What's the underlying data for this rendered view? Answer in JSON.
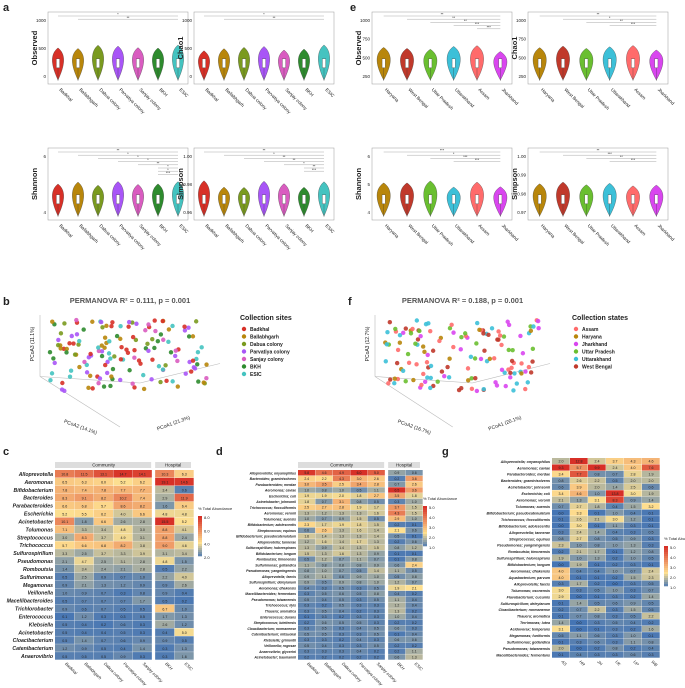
{
  "panels": {
    "a": "a",
    "b": "b",
    "c": "c",
    "d": "d",
    "e": "e",
    "f": "f",
    "g": "g"
  },
  "colors": {
    "sites": {
      "Badkhal": "#d73027",
      "Ballabhgarh": "#b8860b",
      "Dabua colony": "#7a9a1f",
      "Parvatiya colony": "#a855f7",
      "Sanjay colony": "#d95cc0",
      "BKH": "#2e8b2e",
      "ESIC": "#44c3c0"
    },
    "states": {
      "Assam": "#ff6b6b",
      "Haryana": "#b8860b",
      "Jharkhand": "#d946ef",
      "Uttar Pradesh": "#6abf30",
      "Uttarakhand": "#3cc0d8",
      "West Bengal": "#c0392b"
    },
    "heatmap_low": "#4575b4",
    "heatmap_mid": "#fee090",
    "heatmap_high": "#d73027"
  },
  "chart_data": [
    {
      "id": "a",
      "type": "violin",
      "facets": [
        "Observed",
        "Chao1",
        "Shannon",
        "Simpson"
      ],
      "categories": [
        "Badkhal",
        "Ballabhgarh",
        "Dabua colony",
        "Parvatiya colony",
        "Sanjay colony",
        "BKH",
        "ESIC"
      ],
      "yticks": {
        "Observed": [
          "1000",
          "500",
          "0"
        ],
        "Chao1": [
          "1000",
          "500",
          "0"
        ],
        "Shannon": [
          "6",
          "4"
        ],
        "Simpson": [
          "1.00",
          "0.98",
          "0.96"
        ]
      },
      "annotations": {
        "Observed": [
          "*",
          "**"
        ],
        "Chao1": [
          "*",
          "**"
        ],
        "Shannon": [
          "**",
          "*",
          "*",
          "*",
          "**",
          "*",
          "*",
          "***"
        ],
        "Simpson": [
          "**",
          "*",
          "**",
          "**",
          "*",
          "**",
          "***"
        ]
      }
    },
    {
      "id": "b",
      "type": "scatter3d",
      "title": "PERMANOVA R² = 0.111, p = 0.001",
      "axes": [
        "PCoA1 (21.3%)",
        "PCoA2 (14.1%)",
        "PCoA3 (11.1%)"
      ],
      "zticks": [
        "0.4",
        "0.2",
        "0",
        "-0.2"
      ],
      "xticks": [
        "-0.2",
        "0",
        "0.2",
        "0.4",
        "0.6"
      ],
      "yticks": [
        "0.6",
        "0.4",
        "0.2",
        "0",
        "-0.2",
        "-0.4"
      ],
      "legend_title": "Collection sites",
      "legend": [
        "Badkhal",
        "Ballabhgarh",
        "Dabua colony",
        "Parvatiya colony",
        "Sanjay colony",
        "BKH",
        "ESIC"
      ]
    },
    {
      "id": "c",
      "type": "heatmap",
      "groups": [
        "Community",
        "Hospital"
      ],
      "columns": [
        "Badkhal",
        "Ballabhgarh",
        "Dabua colony",
        "Parvatiya colony",
        "Sanjay colony",
        "BKH",
        "ESIC"
      ],
      "legend_title": "% Total Abundance",
      "legend_ticks": [
        "8.0",
        "6.0",
        "4.0",
        "2.0"
      ],
      "rows": [
        "Alloprevotella",
        "Aeromonas",
        "Bifidobacterium",
        "Bacteroides",
        "Parabacteroides",
        "Escherichia",
        "Acinetobacter",
        "Tolumonas",
        "Streptococcus",
        "Trichococcus",
        "Sulfurospirillum",
        "Pseudomonas",
        "Romboutsia",
        "Sulfurimonas",
        "Megamonas",
        "Veillonella",
        "Macellibacteroides",
        "Trichlorobacter",
        "Enterococcus",
        "Klebsiella",
        "Acinetobacter",
        "Cloacibacterium",
        "Catenibacterium",
        "Anaerovibrio"
      ],
      "values": [
        [
          10.8,
          11.5,
          13.1,
          14.7,
          14.1,
          10.3,
          6.3
        ],
        [
          6.5,
          6.3,
          6.0,
          5.2,
          6.2,
          19.1,
          14.6
        ],
        [
          7.8,
          7.4,
          7.8,
          7.7,
          7.7,
          3.4,
          0.6
        ],
        [
          8.3,
          9.1,
          8.2,
          10.2,
          7.4,
          2.9,
          11.9
        ],
        [
          6.6,
          6.8,
          5.7,
          8.6,
          8.2,
          1.6,
          6.4
        ],
        [
          5.2,
          5.5,
          6.2,
          4.0,
          6.6,
          4.8,
          4.8
        ],
        [
          10.1,
          1.8,
          6.6,
          2.6,
          2.8,
          15.5,
          5.2
        ],
        [
          7.1,
          3.3,
          3.4,
          4.8,
          3.0,
          8.8,
          4.1
        ],
        [
          3.0,
          8.3,
          3.7,
          4.9,
          3.1,
          8.8,
          2.4
        ],
        [
          5.7,
          6.6,
          6.8,
          8.2,
          3.8,
          9.0,
          4.6
        ],
        [
          3.3,
          2.5,
          3.7,
          3.3,
          3.9,
          3.1,
          3.4
        ],
        [
          2.1,
          4.7,
          2.5,
          3.1,
          2.8,
          4.8,
          1.5
        ],
        [
          1.4,
          3.4,
          2.4,
          2.1,
          2.8,
          0.5,
          2.2
        ],
        [
          0.5,
          2.5,
          0.9,
          0.7,
          1.0,
          2.2,
          4.0
        ],
        [
          0.9,
          2.1,
          1.3,
          1.2,
          0.9,
          0.9,
          2.6
        ],
        [
          1.0,
          0.9,
          0.7,
          0.3,
          0.8,
          0.9,
          0.4
        ],
        [
          0.5,
          0.7,
          0.7,
          0.7,
          1.7,
          0.5,
          0.2
        ],
        [
          0.9,
          0.6,
          0.7,
          0.5,
          0.5,
          6.7,
          1.0
        ],
        [
          0.1,
          1.2,
          0.3,
          0.3,
          0.5,
          1.7,
          1.3
        ],
        [
          0.5,
          0.4,
          0.2,
          0.6,
          0.3,
          2.6,
          1.2
        ],
        [
          0.5,
          0.4,
          0.4,
          0.5,
          0.3,
          0.4,
          5.0
        ],
        [
          0.5,
          1.4,
          0.7,
          0.6,
          0.9,
          0.9,
          0.5
        ],
        [
          1.2,
          0.9,
          0.5,
          0.4,
          1.4,
          0.3,
          1.3
        ],
        [
          0.5,
          0.5,
          0.5,
          0.9,
          0.3,
          0.3,
          1.6
        ]
      ]
    },
    {
      "id": "d",
      "type": "heatmap",
      "groups": [
        "Community",
        "Hospital"
      ],
      "columns": [
        "Badkhal",
        "Ballabhgarh",
        "Dabua colony",
        "Parvatiya colony",
        "Sanjay colony",
        "BKH",
        "ESIC"
      ],
      "legend_title": "% Total Abundance",
      "legend_ticks": [
        "5.0",
        "4.0",
        "3.0",
        "2.0",
        "1.0"
      ],
      "rows": [
        "Alloprevotella; onyanophilus",
        "Bacteroides; graminisolvens",
        "Parabacteroides; merdae",
        "Aeromonas; caviae",
        "Escherichia; coli",
        "Acinetobacter; johnsonii",
        "Trichococcus; flocculiformis",
        "Aeromonas; veronii",
        "Tolumonas; auensis",
        "Bifidobacterium; adolescentis",
        "Streptococcus; equinus",
        "Bifidobacterium; pseudocatenulatum",
        "Alloprevotella; tannerae",
        "Sulfurospirillum; halorespirans",
        "Bifidobacterium; longum",
        "Romboutsia; timonensis",
        "Sulfurimonas; gotlandica",
        "Pseudomonas; yangmingensis",
        "Alloprevotella; faecis",
        "Sulfurospirillum; deleyianum",
        "Aeromonas; dhakensis",
        "Macellibacteroides; fermentans",
        "Pseudomonas; taiwanensis",
        "Trichococcus; ilyis",
        "Thauera; aromatica",
        "Enterococcus; durans",
        "Streptococcus; lutetiensis",
        "Cloacibacterium; normanense",
        "Catenibacterium; mitsuokai",
        "Klebsiella; grimontii",
        "Veillonella; rogosae",
        "Anaerovibrio; glycerini",
        "Acinetobacter; baumannii"
      ],
      "values": [
        [
          5.8,
          4.6,
          4.9,
          6.0,
          5.0,
          0.9,
          0.6
        ],
        [
          2.4,
          2.2,
          4.3,
          3.0,
          2.6,
          0.2,
          3.6
        ],
        [
          3.0,
          3.5,
          2.5,
          3.4,
          2.8,
          0.7,
          2.6
        ],
        [
          1.0,
          0.8,
          1.0,
          0.5,
          1.1,
          6.5,
          3.6
        ],
        [
          1.9,
          1.9,
          2.0,
          1.8,
          2.7,
          3.5,
          1.8
        ],
        [
          1.8,
          0.7,
          3.1,
          0.8,
          0.5,
          0.3,
          1.0
        ],
        [
          2.5,
          2.7,
          2.8,
          1.9,
          1.7,
          3.7,
          1.5
        ],
        [
          1.3,
          1.2,
          1.3,
          1.3,
          1.6,
          4.3,
          1.5
        ],
        [
          1.0,
          0.7,
          0.9,
          1.5,
          0.5,
          2.9,
          1.0
        ],
        [
          2.3,
          1.7,
          1.9,
          1.8,
          1.5,
          0.2,
          0.1
        ],
        [
          0.6,
          2.6,
          1.3,
          1.6,
          1.4,
          2.1,
          0.6
        ],
        [
          1.6,
          1.4,
          1.3,
          1.3,
          1.4,
          0.5,
          0.1
        ],
        [
          1.2,
          1.6,
          1.4,
          1.7,
          1.3,
          0.2,
          0.6
        ],
        [
          1.3,
          0.9,
          1.4,
          1.3,
          1.5,
          0.8,
          1.2
        ],
        [
          1.5,
          1.3,
          1.6,
          1.3,
          0.9,
          0.1,
          0.1
        ],
        [
          0.5,
          1.2,
          0.7,
          1.1,
          0.7,
          0.1,
          0.8
        ],
        [
          1.1,
          0.8,
          0.8,
          0.8,
          0.9,
          0.6,
          2.4
        ],
        [
          0.8,
          1.0,
          0.7,
          0.5,
          1.4,
          1.1,
          0.5
        ],
        [
          0.9,
          1.1,
          0.6,
          0.9,
          1.0,
          0.5,
          0.8
        ],
        [
          0.9,
          0.5,
          0.9,
          0.8,
          1.0,
          1.2,
          0.7
        ],
        [
          0.4,
          0.3,
          0.5,
          0.3,
          0.5,
          1.9,
          2.1
        ],
        [
          0.3,
          0.5,
          0.6,
          0.5,
          0.8,
          0.4,
          0.2
        ],
        [
          0.5,
          0.4,
          0.5,
          0.3,
          0.5,
          1.1,
          0.4
        ],
        [
          0.3,
          0.2,
          0.5,
          0.3,
          0.3,
          1.2,
          0.4
        ],
        [
          0.3,
          0.5,
          0.4,
          0.2,
          0.3,
          1.3,
          0.2
        ],
        [
          0.1,
          0.3,
          0.2,
          0.3,
          0.3,
          1.0,
          0.4
        ],
        [
          0.2,
          0.6,
          0.5,
          0.5,
          0.3,
          0.2,
          0.2
        ],
        [
          0.3,
          0.5,
          0.3,
          0.4,
          0.5,
          0.6,
          0.3
        ],
        [
          0.5,
          0.5,
          0.3,
          0.3,
          0.5,
          0.1,
          0.4
        ],
        [
          0.3,
          0.3,
          0.2,
          0.4,
          0.3,
          0.6,
          0.6
        ],
        [
          0.5,
          0.4,
          0.3,
          0.3,
          0.5,
          0.2,
          0.2
        ],
        [
          0.3,
          0.3,
          0.3,
          0.4,
          0.2,
          0.2,
          1.1
        ],
        [
          0.2,
          0.2,
          0.2,
          0.2,
          0.2,
          0.6,
          1.3
        ]
      ]
    },
    {
      "id": "e",
      "type": "violin",
      "facets": [
        "Observed",
        "Chao1",
        "Shannon",
        "Simpson"
      ],
      "categories": [
        "Haryana",
        "West Bengal",
        "Uttar Pradesh",
        "Uttarakhand",
        "Assam",
        "Jharkhand"
      ],
      "yticks": {
        "Observed": [
          "1000",
          "750",
          "500",
          "250"
        ],
        "Chao1": [
          "1000",
          "750",
          "500",
          "250"
        ],
        "Shannon": [
          "6",
          "5",
          "4"
        ],
        "Simpson": [
          "1.00",
          "0.99",
          "0.98",
          "0.97"
        ]
      },
      "annotations": {
        "Observed": [
          "**",
          "**",
          "**",
          "***",
          "***"
        ],
        "Chao1": [
          "**",
          "*",
          "**",
          "***"
        ],
        "Shannon": [
          "***",
          "*",
          "***",
          "***"
        ],
        "Simpson": [
          "**",
          "***",
          "**",
          "***"
        ]
      }
    },
    {
      "id": "f",
      "type": "scatter3d",
      "title": "PERMANOVA R² = 0.188, p = 0.001",
      "axes": [
        "PCoA1 (20.1%)",
        "PCoA2 (16.7%)",
        "PCoA3 (12.7%)"
      ],
      "legend_title": "Collection states",
      "legend": [
        "Assam",
        "Haryana",
        "Jharkhand",
        "Uttar Pradesh",
        "Uttarakhand",
        "West Bengal"
      ]
    },
    {
      "id": "g",
      "type": "heatmap",
      "columns": [
        "AS",
        "HR",
        "JH",
        "UK",
        "UP",
        "WB"
      ],
      "legend_title": "% Total Abundance",
      "legend_ticks": [
        "5.0",
        "4.0",
        "3.0",
        "2.0",
        "1.0"
      ],
      "rows": [
        "Alloprevotella; onyanophilus",
        "Aeromonas; caviae",
        "Parabacteroides; merdae",
        "Bacteroides; graminisolvens",
        "Acinetobacter; johnsonii",
        "Escherichia; coli",
        "Aeromonas; veronii",
        "Tolumonas; auensis",
        "Bifidobacterium; pseudocatenulatum",
        "Trichococcus; flocculiformis",
        "Bifidobacterium; adolescentis",
        "Alloprevotella; tannerae",
        "Streptococcus; equinus",
        "Pseudomonas; yangmingensis",
        "Romboutsia; timonensis",
        "Sulfurospirillum; halorespirans",
        "Bifidobacterium; longum",
        "Aeromonas; dhakensis",
        "Aquabacterium; parvum",
        "Alloprevotella; faecis",
        "Tolumonas; osonensis",
        "Flavobacterium; cucumis",
        "Sulfurospirillum; deleyianum",
        "Cloacibacterium; normanense",
        "Thauera; aromatica",
        "Terrimonas; lutea",
        "Acidovorax; temperans",
        "Megamonas; funiformis",
        "Sulfurimonas; gotlandica",
        "Pseudomonas; taiwanensis",
        "Macellibacteroides; fermentans"
      ],
      "values": [
        [
          2.0,
          12.8,
          2.4,
          3.7,
          4.3,
          4.6
        ],
        [
          9.3,
          5.7,
          9.9,
          2.4,
          4.0,
          7.6
        ],
        [
          3.4,
          7.7,
          0.8,
          0.7,
          2.8,
          1.9
        ],
        [
          0.8,
          2.6,
          2.2,
          0.5,
          2.0,
          2.0
        ],
        [
          0.6,
          3.9,
          2.0,
          1.4,
          2.5,
          0.6
        ],
        [
          3.4,
          4.6,
          1.0,
          13.8,
          3.0,
          1.9
        ],
        [
          2.1,
          1.3,
          3.1,
          8.3,
          0.9,
          1.4
        ],
        [
          0.7,
          2.7,
          1.8,
          0.4,
          1.5,
          3.2
        ],
        [
          0.0,
          3.3,
          0.1,
          1.0,
          0.4,
          0.1
        ],
        [
          0.1,
          2.6,
          2.1,
          3.0,
          1.2,
          0.1
        ],
        [
          0.0,
          3.0,
          0.1,
          1.1,
          0.3,
          0.1
        ],
        [
          0.3,
          2.4,
          1.4,
          0.4,
          0.3,
          0.5
        ],
        [
          0.8,
          2.7,
          0.8,
          0.5,
          0.9,
          0.3
        ],
        [
          2.3,
          1.0,
          0.8,
          1.0,
          1.3,
          0.3
        ],
        [
          0.2,
          2.1,
          1.7,
          0.1,
          1.2,
          0.8
        ],
        [
          1.9,
          1.0,
          1.3,
          0.2,
          1.0,
          0.5
        ],
        [
          0.0,
          1.9,
          0.1,
          0.2,
          0.3,
          0.1
        ],
        [
          4.0,
          0.4,
          0.4,
          1.0,
          0.7,
          2.4
        ],
        [
          4.0,
          0.1,
          0.1,
          0.2,
          1.5,
          2.3
        ],
        [
          0.3,
          1.7,
          0.2,
          0.0,
          0.3,
          0.5
        ],
        [
          3.0,
          0.3,
          0.5,
          1.0,
          0.3,
          0.7
        ],
        [
          2.9,
          0.0,
          0.1,
          0.3,
          0.2,
          1.4
        ],
        [
          0.1,
          1.4,
          0.5,
          0.6,
          0.9,
          0.5
        ],
        [
          0.2,
          0.7,
          2.2,
          0.3,
          1.5,
          0.5
        ],
        [
          0.1,
          0.7,
          0.8,
          0.3,
          0.5,
          2.2
        ],
        [
          1.4,
          0.0,
          0.3,
          0.5,
          0.4,
          0.2
        ],
        [
          3.1,
          0.0,
          0.1,
          0.3,
          0.2,
          1.6
        ],
        [
          0.5,
          1.1,
          0.6,
          0.3,
          1.0,
          0.1
        ],
        [
          0.1,
          0.3,
          0.6,
          0.3,
          1.1,
          0.8
        ],
        [
          2.0,
          0.0,
          0.2,
          0.8,
          0.2,
          0.4
        ],
        [
          0.1,
          0.4,
          0.3,
          0.3,
          0.6,
          0.3
        ]
      ]
    }
  ]
}
